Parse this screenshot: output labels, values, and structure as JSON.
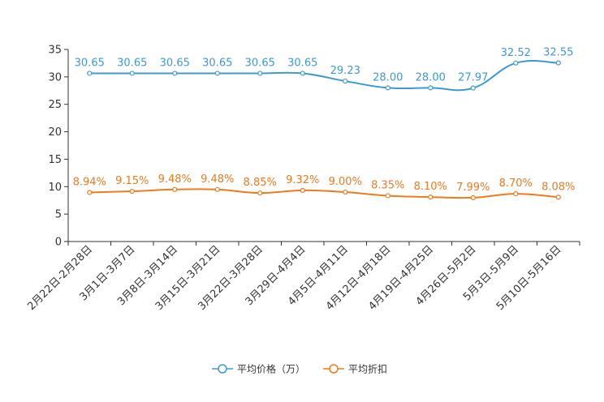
{
  "chart_data": {
    "type": "line",
    "categories": [
      "2月22日-2月28日",
      "3月1日-3月7日",
      "3月8日-3月14日",
      "3月15日-3月21日",
      "3月22日-3月28日",
      "3月29日-4月4日",
      "4月5日-4月11日",
      "4月12日-4月18日",
      "4月19日-4月25日",
      "4月26日-5月2日",
      "5月3日-5月9日",
      "5月10日-5月16日"
    ],
    "ylim": [
      0,
      35
    ],
    "yticks": [
      0,
      5,
      10,
      15,
      20,
      25,
      30,
      35
    ],
    "grid": false,
    "legend_position": "bottom-center",
    "series": [
      {
        "name": "平均价格（万）",
        "color": "#3c9ad3",
        "values": [
          30.65,
          30.65,
          30.65,
          30.65,
          30.65,
          30.65,
          29.23,
          28.0,
          28.0,
          27.97,
          32.52,
          32.55
        ],
        "labels": [
          "30.65",
          "30.65",
          "30.65",
          "30.65",
          "30.65",
          "30.65",
          "29.23",
          "28.00",
          "28.00",
          "27.97",
          "32.52",
          "32.55"
        ]
      },
      {
        "name": "平均折扣",
        "color": "#f07a1c",
        "values": [
          8.94,
          9.15,
          9.48,
          9.48,
          8.85,
          9.32,
          9.0,
          8.35,
          8.1,
          7.99,
          8.7,
          8.08
        ],
        "labels": [
          "8.94%",
          "9.15%",
          "9.48%",
          "9.48%",
          "8.85%",
          "9.32%",
          "9.00%",
          "8.35%",
          "8.10%",
          "7.99%",
          "8.70%",
          "8.08%"
        ]
      }
    ]
  }
}
